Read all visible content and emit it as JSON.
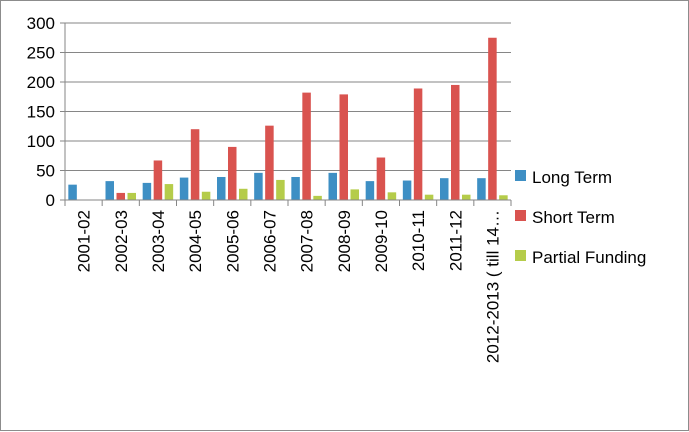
{
  "chart_data": {
    "type": "bar",
    "title": "",
    "xlabel": "",
    "ylabel": "",
    "ylim": [
      0,
      300
    ],
    "yticks": [
      0,
      50,
      100,
      150,
      200,
      250,
      300
    ],
    "grid": true,
    "legend_position": "right",
    "categories": [
      "2001-02",
      "2002-03",
      "2003-04",
      "2004-05",
      "2005-06",
      "2006-07",
      "2007-08",
      "2008-09",
      "2009-10",
      "2010-11",
      "2011-12",
      "2012-2013 ( till 14…"
    ],
    "series": [
      {
        "name": "Long Term",
        "color": "#3e8fc4",
        "values": [
          26,
          32,
          29,
          38,
          39,
          46,
          39,
          46,
          32,
          33,
          37,
          37
        ]
      },
      {
        "name": "Short Term",
        "color": "#d9534f",
        "values": [
          0,
          12,
          67,
          120,
          90,
          126,
          182,
          179,
          72,
          189,
          195,
          275
        ]
      },
      {
        "name": "Partial Funding",
        "color": "#b5cc4a",
        "values": [
          0,
          12,
          27,
          14,
          19,
          34,
          7,
          18,
          13,
          9,
          9,
          8
        ]
      }
    ]
  }
}
